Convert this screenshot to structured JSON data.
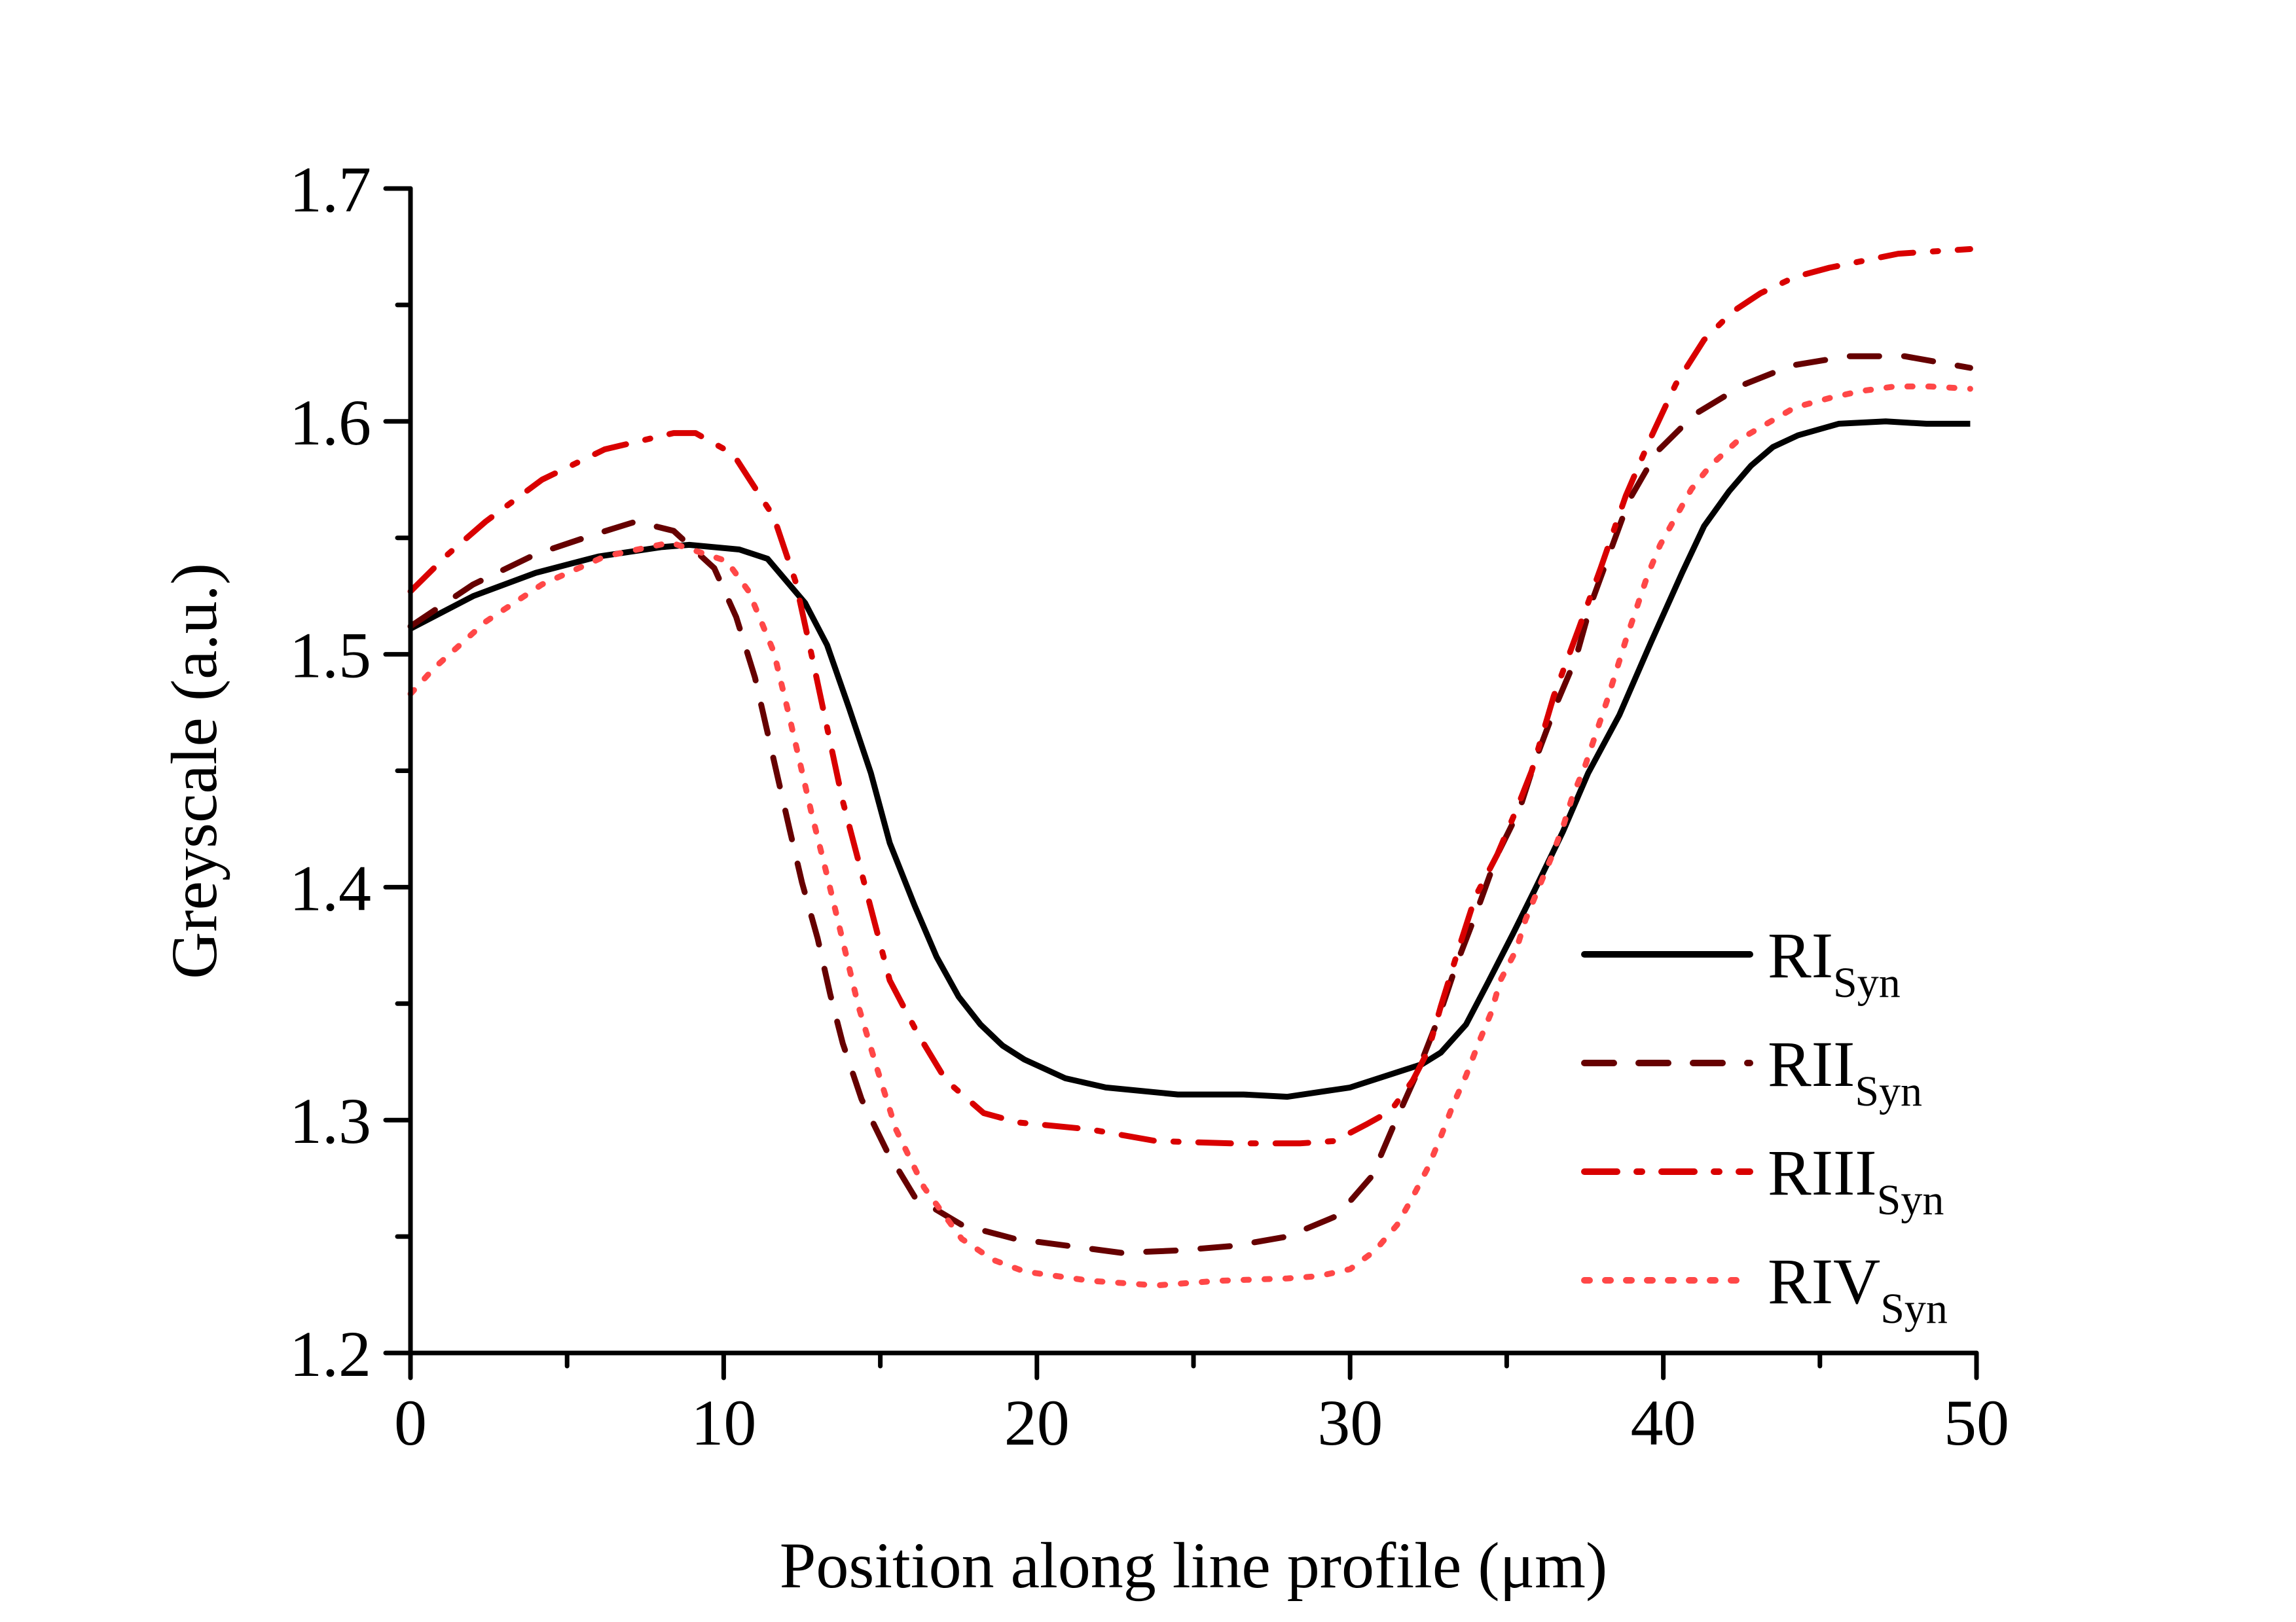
{
  "chart_data": {
    "type": "line",
    "title": "",
    "xlabel": "Position along line profile (μm)",
    "ylabel": "Greyscale (a.u.)",
    "xlim": [
      0,
      50
    ],
    "ylim": [
      1.2,
      1.7
    ],
    "xticks": [
      0,
      10,
      20,
      30,
      40,
      50
    ],
    "xtick_labels": [
      "0",
      "10",
      "20",
      "30",
      "40",
      "50"
    ],
    "x_minor_step": 5,
    "yticks": [
      1.2,
      1.3,
      1.4,
      1.5,
      1.6,
      1.7
    ],
    "ytick_labels": [
      "1.2",
      "1.3",
      "1.4",
      "1.5",
      "1.6",
      "1.7"
    ],
    "y_minor_step": 0.05,
    "grid": false,
    "legend_position": "bottom-right",
    "series": [
      {
        "name": "RI",
        "subscript": "Syn",
        "color": "#000000",
        "style": "solid",
        "x": [
          0,
          2,
          4,
          6,
          8,
          8.9,
          10.5,
          11.4,
          12.6,
          13.3,
          14.0,
          14.7,
          15.3,
          16.1,
          16.8,
          17.5,
          18.2,
          18.9,
          19.6,
          20.9,
          22.2,
          24.5,
          26.6,
          28.0,
          30.0,
          32.3,
          32.9,
          33.7,
          34.4,
          35.2,
          35.9,
          36.8,
          37.6,
          38.6,
          39.6,
          40.6,
          41.3,
          42.1,
          42.8,
          43.5,
          44.3,
          45.6,
          47.1,
          48.4,
          49.8
        ],
        "y": [
          1.511,
          1.525,
          1.535,
          1.542,
          1.546,
          1.547,
          1.545,
          1.541,
          1.522,
          1.504,
          1.477,
          1.449,
          1.419,
          1.392,
          1.37,
          1.353,
          1.341,
          1.332,
          1.326,
          1.318,
          1.314,
          1.311,
          1.311,
          1.31,
          1.314,
          1.324,
          1.329,
          1.341,
          1.359,
          1.38,
          1.399,
          1.424,
          1.449,
          1.474,
          1.505,
          1.535,
          1.555,
          1.57,
          1.581,
          1.589,
          1.594,
          1.599,
          1.6,
          1.599,
          1.599
        ]
      },
      {
        "name": "RII",
        "subscript": "Syn",
        "color": "#660000",
        "style": "dashed",
        "x": [
          0,
          2,
          4,
          6,
          7.2,
          8.4,
          9.7,
          10.4,
          11.0,
          12.1,
          12.5,
          13.0,
          13.4,
          13.8,
          14.4,
          15.2,
          16.1,
          17.6,
          19.3,
          21.0,
          22.7,
          24.5,
          26.3,
          28.0,
          29.6,
          30.7,
          31.4,
          32.1,
          32.8,
          33.4,
          34.0,
          34.7,
          35.4,
          35.9,
          36.6,
          37.2,
          37.7,
          38.9,
          39.8,
          41.0,
          42.6,
          44.1,
          45.9,
          47.7,
          49.8
        ],
        "y": [
          1.512,
          1.53,
          1.543,
          1.552,
          1.557,
          1.553,
          1.537,
          1.516,
          1.49,
          1.425,
          1.402,
          1.378,
          1.354,
          1.333,
          1.309,
          1.287,
          1.267,
          1.255,
          1.249,
          1.246,
          1.243,
          1.244,
          1.246,
          1.25,
          1.259,
          1.276,
          1.298,
          1.319,
          1.343,
          1.367,
          1.388,
          1.414,
          1.433,
          1.454,
          1.479,
          1.498,
          1.522,
          1.566,
          1.587,
          1.603,
          1.616,
          1.624,
          1.628,
          1.628,
          1.623
        ]
      },
      {
        "name": "RIII",
        "subscript": "Syn",
        "color": "#d90000",
        "style": "dash-dot",
        "x": [
          0,
          1.2,
          2.4,
          4.2,
          6.2,
          8.4,
          9.1,
          10.3,
          11.6,
          12.3,
          12.9,
          13.8,
          14.6,
          15.3,
          16.2,
          17.1,
          18.3,
          19.4,
          21.7,
          23.8,
          26.2,
          28.4,
          29.5,
          30.5,
          31.3,
          32.0,
          32.5,
          32.9,
          33.5,
          34.0,
          34.7,
          35.3,
          35.8,
          36.5,
          37.3,
          38.0,
          38.8,
          39.6,
          40.4,
          41.3,
          42.2,
          43.1,
          44.2,
          45.3,
          46.4,
          47.5,
          48.6,
          49.8
        ],
        "y": [
          1.527,
          1.543,
          1.557,
          1.575,
          1.588,
          1.595,
          1.595,
          1.586,
          1.559,
          1.531,
          1.494,
          1.437,
          1.396,
          1.36,
          1.337,
          1.317,
          1.303,
          1.299,
          1.296,
          1.291,
          1.29,
          1.29,
          1.291,
          1.298,
          1.304,
          1.317,
          1.33,
          1.349,
          1.375,
          1.396,
          1.414,
          1.433,
          1.45,
          1.482,
          1.511,
          1.537,
          1.568,
          1.593,
          1.616,
          1.635,
          1.647,
          1.655,
          1.662,
          1.666,
          1.669,
          1.672,
          1.673,
          1.674
        ]
      },
      {
        "name": "RIV",
        "subscript": "Syn",
        "color": "#ff4747",
        "style": "dotted",
        "x": [
          0,
          0.75,
          2.4,
          4.2,
          6.2,
          8.3,
          10.1,
          10.8,
          11.6,
          12.1,
          12.8,
          13.3,
          13.8,
          14.3,
          14.9,
          15.5,
          16.4,
          17.6,
          18.6,
          19.6,
          21.7,
          23.8,
          25.8,
          28.0,
          29.0,
          30.0,
          30.8,
          31.5,
          32.0,
          32.5,
          32.9,
          33.3,
          33.7,
          34.1,
          34.5,
          34.8,
          35.3,
          35.6,
          36.0,
          36.4,
          36.8,
          37.1,
          37.5,
          38.2,
          38.8,
          39.5,
          39.9,
          40.4,
          40.9,
          41.5,
          42.4,
          43.3,
          44.2,
          45.3,
          46.3,
          47.4,
          48.5,
          49.8
        ],
        "y": [
          1.483,
          1.494,
          1.514,
          1.53,
          1.542,
          1.548,
          1.54,
          1.527,
          1.501,
          1.473,
          1.432,
          1.405,
          1.377,
          1.349,
          1.322,
          1.296,
          1.271,
          1.249,
          1.24,
          1.235,
          1.231,
          1.229,
          1.231,
          1.232,
          1.233,
          1.236,
          1.244,
          1.255,
          1.267,
          1.28,
          1.293,
          1.307,
          1.319,
          1.333,
          1.346,
          1.36,
          1.373,
          1.386,
          1.399,
          1.412,
          1.426,
          1.439,
          1.452,
          1.48,
          1.506,
          1.534,
          1.547,
          1.559,
          1.571,
          1.581,
          1.592,
          1.599,
          1.606,
          1.61,
          1.613,
          1.615,
          1.615,
          1.614
        ]
      }
    ]
  }
}
